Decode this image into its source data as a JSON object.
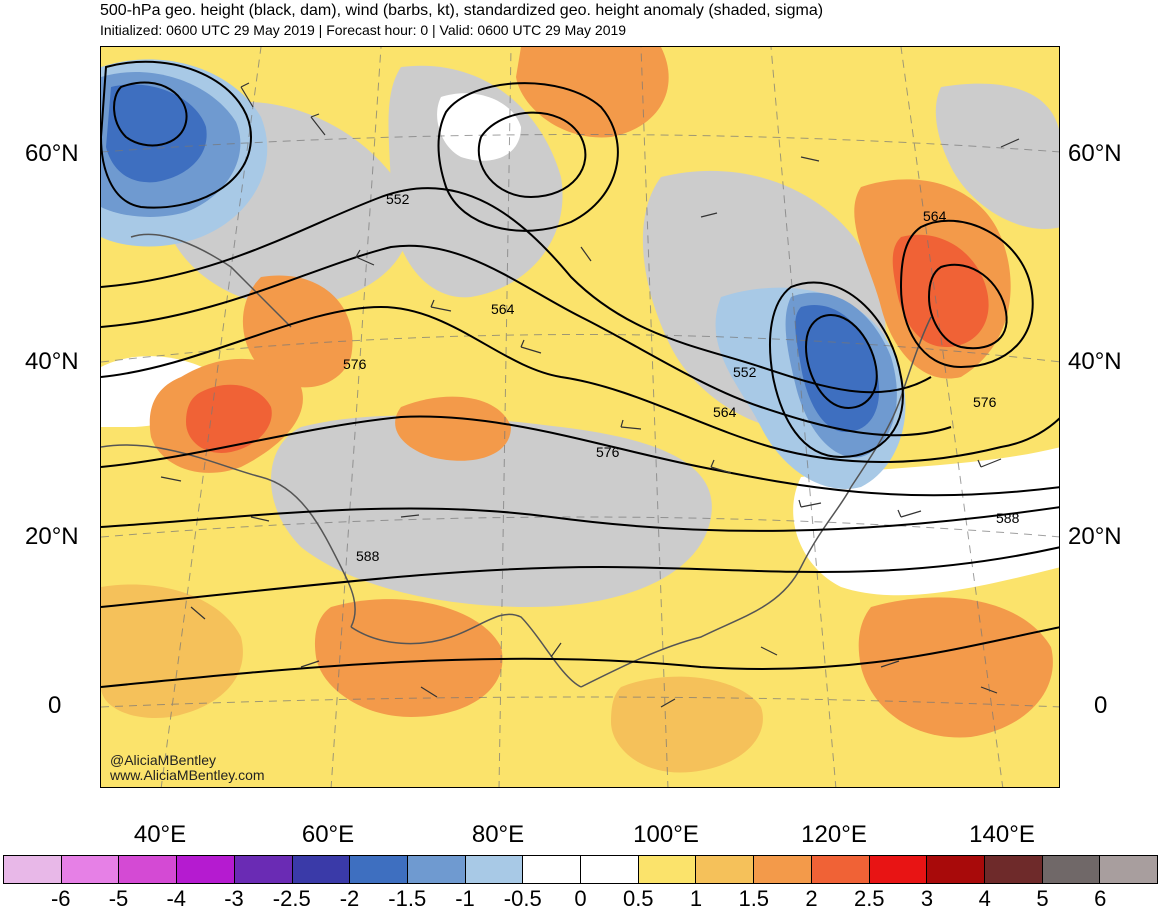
{
  "header": {
    "title": "500-hPa geo. height (black, dam), wind (barbs, kt), standardized geo. height anomaly (shaded, sigma)",
    "subtitle": "Initialized: 0600 UTC 29 May 2019 | Forecast hour: 0 | Valid: 0600 UTC 29 May 2019"
  },
  "map": {
    "lat_labels": [
      "60°N",
      "40°N",
      "20°N",
      "0"
    ],
    "lon_labels": [
      "40°E",
      "60°E",
      "80°E",
      "100°E",
      "120°E",
      "140°E"
    ],
    "contour_labels": [
      "552",
      "564",
      "576",
      "552",
      "564",
      "576",
      "564",
      "576",
      "588",
      "588"
    ],
    "credit_handle": "@AliciaMBentley",
    "credit_url": "www.AliciaMBentley.com"
  },
  "colorbar": {
    "colors": [
      "#e8b8e8",
      "#e680e6",
      "#d44ad4",
      "#b51bd0",
      "#6a2bb4",
      "#3a3aa8",
      "#3e6fc0",
      "#6f9ad0",
      "#a8c9e6",
      "#ffffff",
      "#ffffff",
      "#fbe36b",
      "#f5c15a",
      "#f39a4a",
      "#f06236",
      "#e81414",
      "#a80a0a",
      "#6e2a2a",
      "#706868",
      "#a89e9e"
    ],
    "labels": [
      "-6",
      "-5",
      "-4",
      "-3",
      "-2.5",
      "-2",
      "-1.5",
      "-1",
      "-0.5",
      "0",
      "0.5",
      "1",
      "1.5",
      "2",
      "2.5",
      "3",
      "4",
      "5",
      "6"
    ]
  },
  "anomaly_colors": {
    "neg_strong": "#3e6fc0",
    "neg_mod": "#6f9ad0",
    "neg_weak": "#a8c9e6",
    "neutral_gray": "#cccccc",
    "pos_weak": "#fbe36b",
    "pos_mod": "#f5c15a",
    "pos_strong": "#f39a4a",
    "pos_vstrong": "#f06236"
  }
}
